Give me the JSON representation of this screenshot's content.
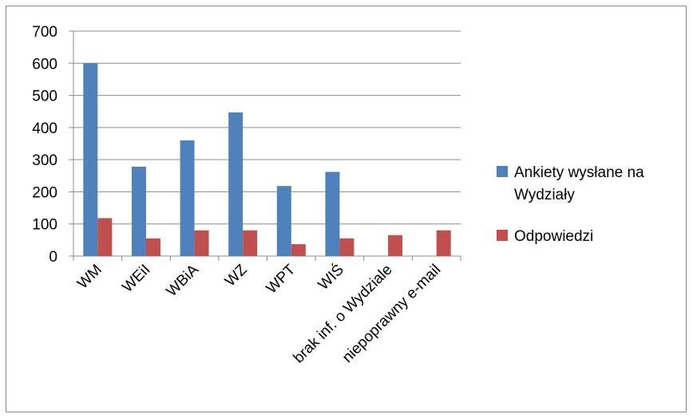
{
  "chart_data": {
    "type": "bar",
    "title": "",
    "xlabel": "",
    "ylabel": "",
    "categories": [
      "WM",
      "WEiI",
      "WBiA",
      "WZ",
      "WPT",
      "WIŚ",
      "brak inf. o Wydziale",
      "niepoprawny e-mail"
    ],
    "series": [
      {
        "name": "Ankiety wysłane na Wydziały",
        "color": "#4f81bd",
        "values": [
          600,
          278,
          360,
          447,
          218,
          262,
          null,
          null
        ]
      },
      {
        "name": "Odpowiedzi",
        "color": "#c0504d",
        "values": [
          118,
          55,
          80,
          80,
          37,
          55,
          65,
          80
        ]
      }
    ],
    "ylim": [
      0,
      700
    ],
    "yticks": [
      0,
      100,
      200,
      300,
      400,
      500,
      600,
      700
    ],
    "grid": true,
    "legend": "right"
  }
}
